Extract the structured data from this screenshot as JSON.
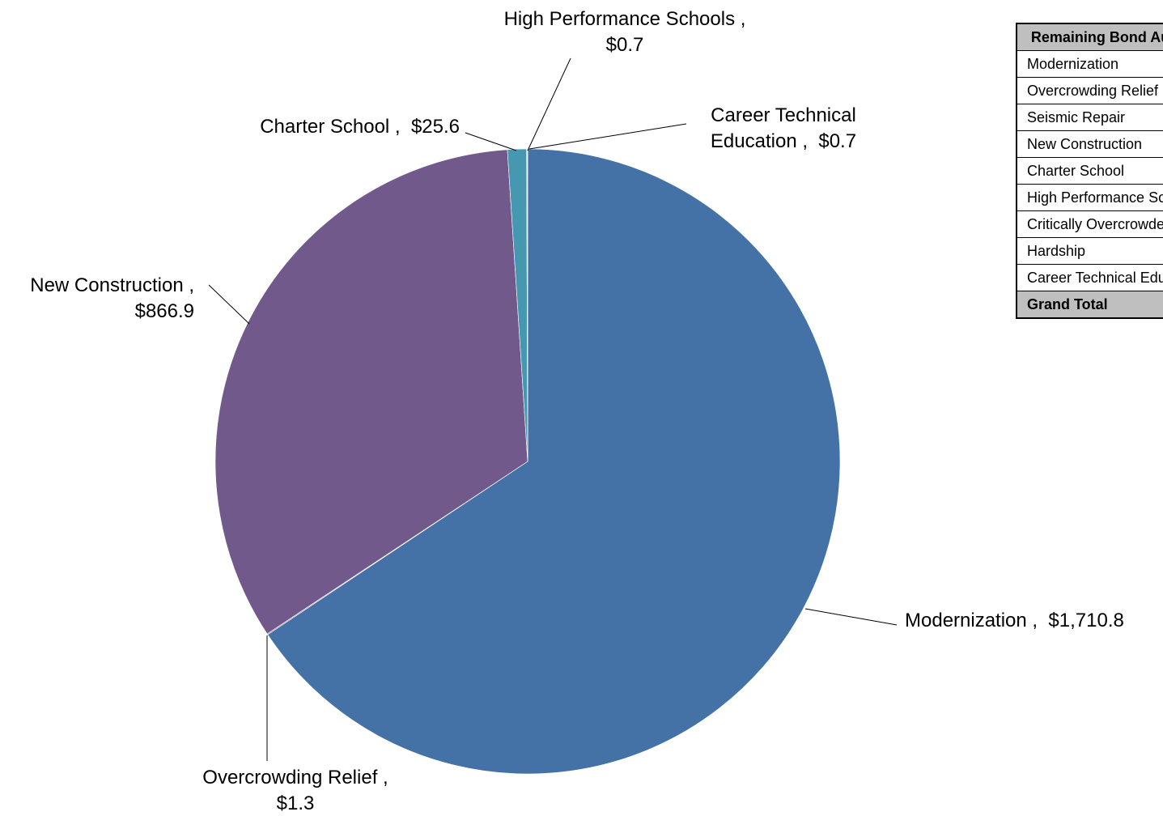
{
  "chart_data": {
    "type": "pie",
    "title": "",
    "unit_prefix": "$",
    "slices": [
      {
        "name": "Modernization",
        "value": 1710.8,
        "display": "Modernization ,  $1,710.8",
        "color": "#4472a6"
      },
      {
        "name": "Overcrowding Relief",
        "value": 1.3,
        "display_lines": [
          "Overcrowding Relief ,",
          "$1.3"
        ],
        "color": "#8e5c8e"
      },
      {
        "name": "New Construction",
        "value": 866.9,
        "display_lines": [
          "New Construction ,",
          "$866.9"
        ],
        "color": "#71598c"
      },
      {
        "name": "Charter School",
        "value": 25.6,
        "display": "Charter School ,  $25.6",
        "color": "#4698b0"
      },
      {
        "name": "High Performance Schools",
        "value": 0.7,
        "display_lines": [
          "High Performance Schools ,",
          "$0.7"
        ],
        "color": "#e0882f"
      },
      {
        "name": "Career Technical Education",
        "value": 0.7,
        "display_lines": [
          "Career Technical",
          "Education ,  $0.7"
        ],
        "color": "#c8d89a"
      }
    ]
  },
  "table": {
    "header": "Remaining Bond Authority",
    "rows": [
      "Modernization",
      "Overcrowding Relief",
      "Seismic Repair",
      "New Construction",
      "Charter School",
      "High Performance Schools",
      "Critically Overcrowded Schools",
      "Hardship",
      "Career Technical Education"
    ],
    "total_label": "Grand Total"
  }
}
